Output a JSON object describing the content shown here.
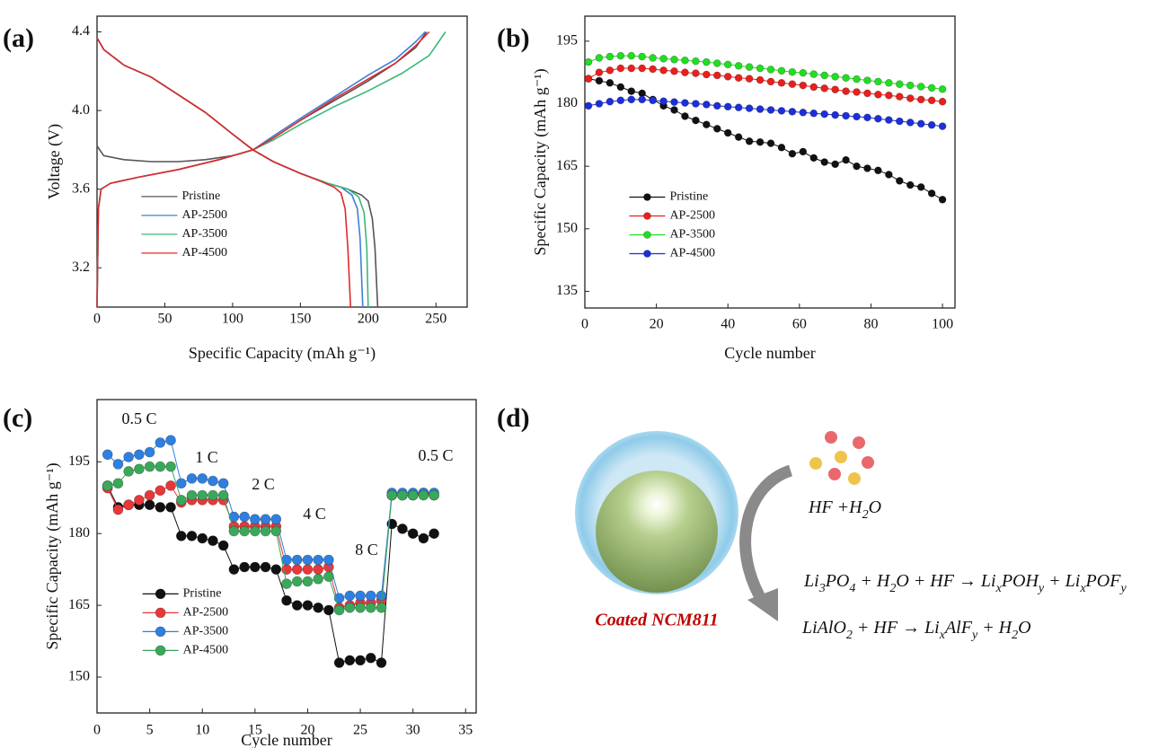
{
  "chart_data": [
    {
      "type": "line",
      "label": "(a)",
      "xlabel": "Specific Capacity (mAh g⁻¹)",
      "ylabel": "Voltage (V)",
      "xlim": [
        0,
        273
      ],
      "ylim": [
        3.0,
        4.48
      ],
      "xticks": [
        0,
        50,
        100,
        150,
        200,
        250
      ],
      "yticks": [
        3.2,
        3.6,
        {
          "value": 4,
          "label": "4.0"
        },
        4.4
      ],
      "legend": "lower left",
      "markers": false,
      "series": [
        {
          "name": "Pristine",
          "color": "#555555",
          "x": [
            0,
            5,
            20,
            40,
            60,
            80,
            100,
            115,
            130,
            150,
            175,
            200,
            220,
            235,
            243,
            null,
            0,
            5,
            20,
            40,
            60,
            80,
            100,
            115,
            130,
            150,
            170,
            185,
            195,
            200,
            203,
            205,
            207
          ],
          "values": [
            3.82,
            3.77,
            3.75,
            3.74,
            3.74,
            3.75,
            3.77,
            3.8,
            3.86,
            3.95,
            4.05,
            4.15,
            4.24,
            4.32,
            4.4,
            null,
            4.37,
            4.31,
            4.23,
            4.17,
            4.08,
            3.99,
            3.88,
            3.8,
            3.74,
            3.68,
            3.63,
            3.6,
            3.57,
            3.54,
            3.45,
            3.3,
            3.0
          ]
        },
        {
          "name": "AP-2500",
          "color": "#3f7fd6",
          "x": [
            0,
            1,
            3,
            10,
            30,
            60,
            90,
            115,
            130,
            150,
            175,
            200,
            220,
            235,
            242,
            null,
            0,
            5,
            20,
            40,
            60,
            80,
            100,
            115,
            130,
            150,
            170,
            180,
            188,
            192,
            194,
            196
          ],
          "values": [
            3.0,
            3.5,
            3.6,
            3.63,
            3.66,
            3.7,
            3.75,
            3.8,
            3.87,
            3.96,
            4.07,
            4.18,
            4.26,
            4.35,
            4.4,
            null,
            4.37,
            4.31,
            4.23,
            4.17,
            4.08,
            3.99,
            3.88,
            3.8,
            3.74,
            3.68,
            3.63,
            3.61,
            3.57,
            3.5,
            3.35,
            3.0
          ]
        },
        {
          "name": "AP-3500",
          "color": "#3cb878",
          "x": [
            0,
            1,
            3,
            10,
            30,
            60,
            90,
            115,
            130,
            150,
            175,
            200,
            225,
            245,
            257,
            null,
            0,
            5,
            20,
            40,
            60,
            80,
            100,
            115,
            130,
            150,
            170,
            185,
            193,
            197,
            199,
            200
          ],
          "values": [
            3.0,
            3.5,
            3.6,
            3.63,
            3.66,
            3.7,
            3.75,
            3.8,
            3.85,
            3.93,
            4.02,
            4.1,
            4.19,
            4.28,
            4.4,
            null,
            4.37,
            4.31,
            4.23,
            4.17,
            4.08,
            3.99,
            3.88,
            3.8,
            3.74,
            3.68,
            3.63,
            3.6,
            3.56,
            3.48,
            3.3,
            3.0
          ]
        },
        {
          "name": "AP-4500",
          "color": "#e0282e",
          "x": [
            0,
            1,
            3,
            10,
            30,
            60,
            90,
            115,
            130,
            150,
            175,
            200,
            220,
            235,
            245,
            null,
            0,
            5,
            20,
            40,
            60,
            80,
            100,
            115,
            130,
            150,
            165,
            175,
            180,
            183,
            185,
            187
          ],
          "values": [
            3.0,
            3.5,
            3.6,
            3.63,
            3.66,
            3.7,
            3.75,
            3.8,
            3.86,
            3.95,
            4.06,
            4.16,
            4.24,
            4.33,
            4.4,
            null,
            4.37,
            4.31,
            4.23,
            4.17,
            4.08,
            3.99,
            3.88,
            3.8,
            3.74,
            3.68,
            3.64,
            3.61,
            3.58,
            3.5,
            3.3,
            3.0
          ]
        }
      ]
    },
    {
      "type": "line",
      "label": "(b)",
      "xlabel": "Cycle number",
      "ylabel": "Specific Capacity (mAh g⁻¹)",
      "xlim": [
        0,
        103.5
      ],
      "ylim": [
        131,
        201
      ],
      "xticks": [
        0,
        20,
        40,
        60,
        80,
        100
      ],
      "yticks": [
        135,
        150,
        165,
        180,
        195
      ],
      "legend": "lower left",
      "markers": true,
      "x": [
        1,
        4,
        7,
        10,
        13,
        16,
        19,
        22,
        25,
        28,
        31,
        34,
        37,
        40,
        43,
        46,
        49,
        52,
        55,
        58,
        61,
        64,
        67,
        70,
        73,
        76,
        79,
        82,
        85,
        88,
        91,
        94,
        97,
        100
      ],
      "series": [
        {
          "name": "Pristine",
          "color": "#111111",
          "values": [
            186,
            185.5,
            185,
            184,
            183,
            182.5,
            181,
            179.5,
            178.5,
            177,
            176,
            175,
            174,
            173,
            172,
            171,
            170.8,
            170.5,
            169.5,
            168,
            168.5,
            167,
            166,
            165.5,
            166.5,
            165,
            164.5,
            164,
            163,
            161.5,
            160.5,
            160,
            158.5,
            157
          ]
        },
        {
          "name": "AP-2500",
          "color": "#e8201c",
          "values": [
            186,
            187.5,
            188,
            188.5,
            188.5,
            188.5,
            188.3,
            188,
            187.8,
            187.5,
            187.3,
            187,
            186.8,
            186.5,
            186.2,
            186,
            185.7,
            185.3,
            185,
            184.7,
            184.4,
            184,
            183.7,
            183.4,
            183,
            182.8,
            182.5,
            182.2,
            182,
            181.7,
            181.3,
            181,
            180.8,
            180.5
          ]
        },
        {
          "name": "AP-3500",
          "color": "#22dd22",
          "values": [
            190,
            191,
            191.3,
            191.5,
            191.5,
            191.3,
            191,
            190.8,
            190.6,
            190.4,
            190.2,
            190,
            189.7,
            189.4,
            189.1,
            188.8,
            188.5,
            188.2,
            187.9,
            187.6,
            187.4,
            187.1,
            186.8,
            186.5,
            186.2,
            185.9,
            185.6,
            185.3,
            185,
            184.7,
            184.4,
            184.1,
            183.8,
            183.5
          ]
        },
        {
          "name": "AP-4500",
          "color": "#1c2fd8",
          "values": [
            179.5,
            180,
            180.5,
            180.8,
            181,
            181,
            180.8,
            180.6,
            180.4,
            180.2,
            180,
            179.8,
            179.5,
            179.3,
            179.1,
            178.9,
            178.7,
            178.5,
            178.3,
            178.1,
            177.9,
            177.7,
            177.5,
            177.3,
            177.1,
            176.9,
            176.7,
            176.4,
            176.1,
            175.8,
            175.5,
            175.2,
            174.9,
            174.6
          ]
        }
      ]
    },
    {
      "type": "line",
      "label": "(c)",
      "xlabel": "Cycle number",
      "ylabel": "Specific Capacity (mAh g⁻¹)",
      "xlim": [
        0,
        36
      ],
      "ylim": [
        142.5,
        208
      ],
      "xticks": [
        0,
        5,
        10,
        15,
        20,
        25,
        30,
        35
      ],
      "yticks": [
        150,
        165,
        180,
        195
      ],
      "legend": "lower left",
      "markers": true,
      "annotations": [
        "0.5 C",
        "1 C",
        "2 C",
        "4 C",
        "8 C",
        "0.5 C"
      ],
      "x": [
        1,
        2,
        3,
        4,
        5,
        6,
        7,
        8,
        9,
        10,
        11,
        12,
        13,
        14,
        15,
        16,
        17,
        18,
        19,
        20,
        21,
        22,
        23,
        24,
        25,
        26,
        27,
        28,
        29,
        30,
        31,
        32
      ],
      "series": [
        {
          "name": "Pristine",
          "color": "#111111",
          "values": [
            190,
            185.5,
            186,
            186,
            186,
            185.5,
            185.5,
            179.5,
            179.5,
            179,
            178.5,
            177.5,
            172.5,
            173,
            173,
            173,
            172.5,
            166,
            165,
            165,
            164.5,
            164,
            153,
            153.5,
            153.5,
            154,
            153,
            182,
            181,
            180,
            179,
            180
          ]
        },
        {
          "name": "AP-2500",
          "color": "#e8373a",
          "values": [
            189.5,
            185,
            186,
            187,
            188,
            189,
            190,
            186.5,
            187,
            187,
            187,
            187,
            181.5,
            181.5,
            181.5,
            181.5,
            181.5,
            172.5,
            172.5,
            172.5,
            172.5,
            173,
            164.5,
            165,
            165.5,
            165.5,
            166,
            188,
            188,
            188,
            188.5,
            188
          ]
        },
        {
          "name": "AP-3500",
          "color": "#2f7fe0",
          "values": [
            196.5,
            194.5,
            196,
            196.5,
            197,
            199,
            199.5,
            190.5,
            191.5,
            191.5,
            191,
            190.5,
            183.5,
            183.5,
            183,
            183,
            183,
            174.5,
            174.5,
            174.5,
            174.5,
            174.5,
            166.5,
            167,
            167,
            167,
            167,
            188.5,
            188.5,
            188.5,
            188.5,
            188.5
          ]
        },
        {
          "name": "AP-4500",
          "color": "#3aa85a",
          "values": [
            190,
            190.5,
            193,
            193.5,
            194,
            194,
            194,
            187,
            188,
            188,
            188,
            188,
            180.5,
            180.5,
            180.5,
            180.5,
            180.5,
            169.5,
            170,
            170,
            170.5,
            171,
            164,
            164.5,
            164.5,
            164.5,
            164.5,
            188,
            188,
            188,
            188,
            188
          ]
        }
      ]
    }
  ],
  "diagram": {
    "label": "(d)",
    "particle": "Coated NCM811",
    "reagent": [
      "HF +H",
      "2",
      "O"
    ],
    "equations": [
      [
        "Li",
        "3",
        "PO",
        "4",
        " + H",
        "2",
        "O + HF → Li",
        "x",
        "POH",
        "y",
        " + Li",
        "x",
        "POF",
        "y"
      ],
      [
        "LiAlO",
        "2",
        " + HF → Li",
        "x",
        "AlF",
        "y",
        " + H",
        "2",
        "O"
      ]
    ]
  }
}
